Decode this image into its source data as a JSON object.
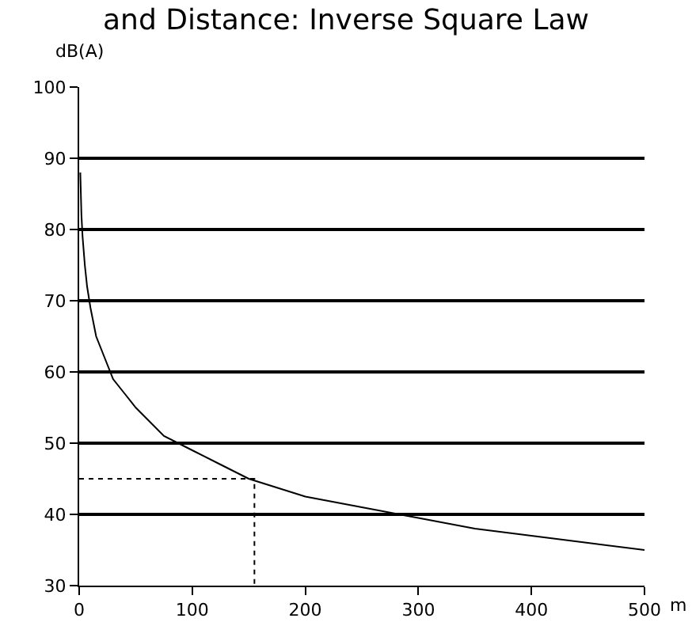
{
  "chart_data": {
    "type": "line",
    "title": "and Distance: Inverse Square Law",
    "ylabel": "dB(A)",
    "xlabel": "m",
    "series": [
      {
        "color": "#000000",
        "line_style": "solid",
        "x": [
          1,
          2,
          3,
          5,
          7,
          10,
          15,
          20,
          30,
          40,
          50,
          75,
          100,
          125,
          150,
          200,
          250,
          300,
          350,
          400,
          450,
          500
        ],
        "values": [
          88,
          82,
          79,
          75,
          72,
          69,
          65,
          63,
          59,
          57,
          55,
          51,
          49,
          47,
          45,
          42.5,
          41,
          39.5,
          38,
          37,
          36,
          35
        ]
      },
      {
        "color": "#000000",
        "line_style": "dotted",
        "x": [
          0,
          155,
          155
        ],
        "values": [
          45,
          45,
          30
        ]
      }
    ],
    "xlim": [
      0,
      500
    ],
    "xticks": [
      0,
      100,
      200,
      300,
      400,
      500
    ],
    "ylim": [
      30,
      100
    ],
    "yticks": [
      30,
      40,
      50,
      60,
      70,
      80,
      90,
      100
    ],
    "grid": "y"
  }
}
